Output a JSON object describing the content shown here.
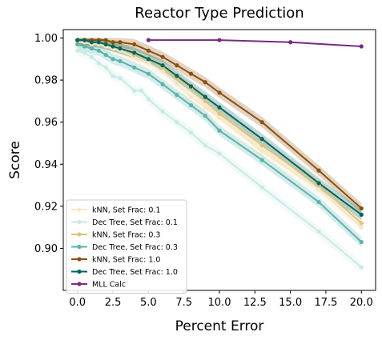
{
  "chart_data": {
    "type": "line",
    "title": "Reactor Type Prediction",
    "xlabel": "Percent Error",
    "ylabel": "Score",
    "xlim": [
      -1,
      21
    ],
    "ylim": [
      0.88,
      1.004
    ],
    "xticks": [
      0.0,
      2.5,
      5.0,
      7.5,
      10.0,
      12.5,
      15.0,
      17.5,
      20.0
    ],
    "xtick_labels": [
      "0.0",
      "2.5",
      "5.0",
      "7.5",
      "10.0",
      "12.5",
      "15.0",
      "17.5",
      "20.0"
    ],
    "yticks": [
      0.9,
      0.92,
      0.94,
      0.96,
      0.98,
      1.0
    ],
    "ytick_labels": [
      "0.90",
      "0.92",
      "0.94",
      "0.96",
      "0.98",
      "1.00"
    ],
    "legend_position": "lower-left",
    "series": [
      {
        "name": "kNN, Set Frac: 0.1",
        "color": "#f6e8c3",
        "x": [
          0,
          0.5,
          1,
          1.5,
          2,
          2.5,
          3,
          4,
          5,
          6,
          7,
          8,
          9,
          10,
          13,
          17,
          20
        ],
        "y": [
          0.998,
          0.998,
          0.997,
          0.997,
          0.996,
          0.995,
          0.994,
          0.991,
          0.988,
          0.984,
          0.978,
          0.972,
          0.967,
          0.962,
          0.946,
          0.928,
          0.91
        ]
      },
      {
        "name": "Dec Tree, Set Frac: 0.1",
        "color": "#c7eae5",
        "x": [
          0,
          0.5,
          1,
          1.5,
          2,
          2.5,
          3,
          4,
          4.5,
          5,
          6,
          7,
          8,
          9,
          10,
          13,
          17,
          20
        ],
        "y": [
          0.994,
          0.993,
          0.991,
          0.988,
          0.986,
          0.982,
          0.981,
          0.975,
          0.975,
          0.971,
          0.965,
          0.96,
          0.955,
          0.949,
          0.945,
          0.929,
          0.908,
          0.891
        ]
      },
      {
        "name": "kNN, Set Frac: 0.3",
        "color": "#dfc27d",
        "x": [
          0,
          0.5,
          1,
          1.5,
          2,
          2.5,
          3,
          4,
          5,
          6,
          7,
          8,
          9,
          10,
          13,
          17,
          20
        ],
        "y": [
          0.999,
          0.999,
          0.998,
          0.998,
          0.997,
          0.996,
          0.995,
          0.992,
          0.99,
          0.986,
          0.981,
          0.976,
          0.97,
          0.964,
          0.949,
          0.93,
          0.912
        ]
      },
      {
        "name": "Dec Tree, Set Frac: 0.3",
        "color": "#5ab4ac",
        "x": [
          0,
          0.5,
          1,
          1.5,
          2,
          2.5,
          3,
          4,
          5,
          6,
          7,
          8,
          9,
          10,
          13,
          17,
          20
        ],
        "y": [
          0.997,
          0.996,
          0.995,
          0.994,
          0.992,
          0.99,
          0.989,
          0.986,
          0.983,
          0.978,
          0.973,
          0.968,
          0.963,
          0.956,
          0.942,
          0.922,
          0.903
        ]
      },
      {
        "name": "kNN, Set Frac: 1.0",
        "color": "#8c510a",
        "x": [
          0,
          0.5,
          1,
          1.5,
          2,
          2.5,
          3,
          4,
          5,
          6,
          7,
          8,
          9,
          10,
          13,
          17,
          20
        ],
        "y": [
          0.999,
          0.999,
          0.999,
          0.999,
          0.999,
          0.998,
          0.998,
          0.997,
          0.994,
          0.991,
          0.987,
          0.983,
          0.979,
          0.974,
          0.96,
          0.937,
          0.919
        ]
      },
      {
        "name": "Dec Tree, Set Frac: 1.0",
        "color": "#01665e",
        "x": [
          0,
          0.5,
          1,
          1.5,
          2,
          2.5,
          3,
          4,
          5,
          6,
          7,
          8,
          9,
          10,
          13,
          17,
          20
        ],
        "y": [
          0.999,
          0.999,
          0.998,
          0.998,
          0.997,
          0.996,
          0.995,
          0.993,
          0.99,
          0.987,
          0.982,
          0.977,
          0.972,
          0.967,
          0.952,
          0.931,
          0.916
        ]
      },
      {
        "name": "MLL Calc",
        "color": "#762a83",
        "x": [
          5,
          10,
          15,
          20
        ],
        "y": [
          0.999,
          0.999,
          0.998,
          0.996
        ]
      }
    ]
  }
}
